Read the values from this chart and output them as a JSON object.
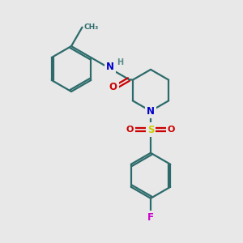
{
  "bg_color": "#e8e8e8",
  "atom_colors": {
    "C": "#2d6b6b",
    "N": "#0000cc",
    "O": "#cc0000",
    "S": "#cccc00",
    "F": "#cc00cc",
    "H": "#5a8a8a"
  },
  "bond_color": "#2d6b6b",
  "figsize": [
    3.0,
    3.0
  ],
  "dpi": 100
}
